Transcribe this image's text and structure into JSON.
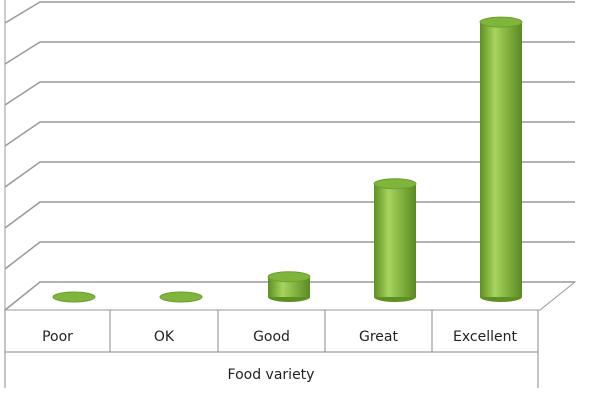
{
  "chart_data": {
    "type": "bar",
    "x_label": "Food variety",
    "categories": [
      "Poor",
      "OK",
      "Good",
      "Great",
      "Excellent"
    ],
    "values": [
      0,
      0,
      0.5,
      2.8,
      6.8
    ],
    "color": "#7fb53a",
    "ylim": [
      0,
      7
    ],
    "yticks": [
      0,
      1,
      2,
      3,
      4,
      5,
      6,
      7
    ],
    "grid": true
  }
}
